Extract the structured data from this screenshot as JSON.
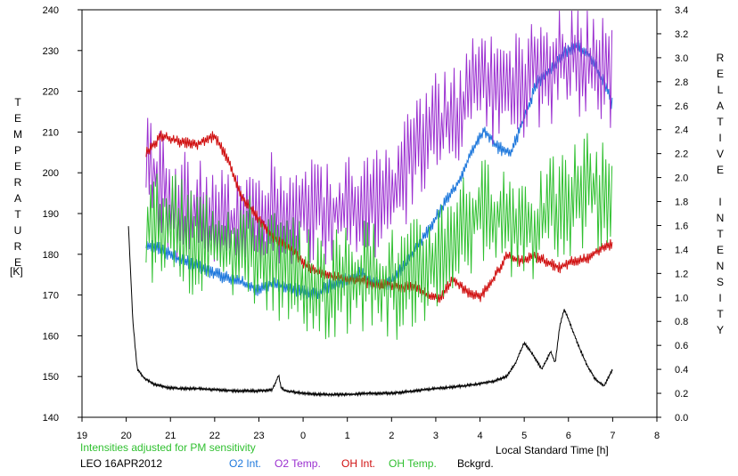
{
  "chart_data": {
    "type": "line",
    "left_axis": {
      "label": "TEMPERATURE",
      "unit": "[K]",
      "range": [
        140,
        240
      ],
      "ticks": [
        140,
        150,
        160,
        170,
        180,
        190,
        200,
        210,
        220,
        230,
        240
      ]
    },
    "right_axis": {
      "label": "RELATIVE INTENSITY",
      "range": [
        0.0,
        3.4
      ],
      "ticks": [
        "0.0",
        "0.2",
        "0.4",
        "0.6",
        "0.8",
        "1.0",
        "1.2",
        "1.4",
        "1.6",
        "1.8",
        "2.0",
        "2.2",
        "2.4",
        "2.6",
        "2.8",
        "3.0",
        "3.2",
        "3.4"
      ]
    },
    "x_axis": {
      "label": "Local Standard Time [h]",
      "range": [
        19,
        32
      ],
      "ticks": [
        "19",
        "20",
        "21",
        "22",
        "23",
        "0",
        "1",
        "2",
        "3",
        "4",
        "5",
        "6",
        "7",
        "8"
      ]
    },
    "note": "Intensities adjusted for PM sensitivity",
    "station": "LEO 16APR2012",
    "series": [
      {
        "name": "O2 Int.",
        "color": "#1e78dc",
        "axis": "right",
        "x": [
          20.45,
          20.8,
          21.2,
          21.6,
          22.0,
          22.4,
          22.8,
          23.0,
          23.3,
          23.6,
          24.0,
          24.3,
          24.6,
          25.0,
          25.3,
          25.6,
          25.9,
          26.2,
          26.5,
          26.9,
          27.2,
          27.5,
          27.8,
          28.1,
          28.4,
          28.7,
          29.0,
          29.3,
          29.6,
          29.9,
          30.2,
          30.5,
          30.8,
          31.0
        ],
        "y": [
          1.45,
          1.4,
          1.32,
          1.26,
          1.2,
          1.15,
          1.1,
          1.05,
          1.12,
          1.08,
          1.05,
          1.03,
          1.1,
          1.15,
          1.2,
          1.12,
          1.1,
          1.22,
          1.38,
          1.6,
          1.78,
          1.95,
          2.2,
          2.4,
          2.25,
          2.2,
          2.5,
          2.8,
          2.9,
          3.05,
          3.1,
          3.0,
          2.8,
          2.6
        ]
      },
      {
        "name": "O2 Temp.",
        "color": "#9b30d0",
        "axis": "left",
        "x": [
          20.45,
          20.8,
          21.2,
          21.6,
          22.0,
          22.4,
          22.8,
          23.0,
          23.3,
          23.6,
          24.0,
          24.3,
          24.6,
          25.0,
          25.3,
          25.6,
          25.9,
          26.2,
          26.5,
          26.9,
          27.2,
          27.5,
          27.8,
          28.1,
          28.4,
          28.7,
          29.0,
          29.3,
          29.6,
          29.9,
          30.2,
          30.5,
          30.8,
          31.0
        ],
        "y": [
          205,
          196,
          192,
          190,
          188,
          188,
          190,
          188,
          193,
          190,
          190,
          192,
          190,
          192,
          192,
          193,
          193,
          198,
          205,
          210,
          212,
          215,
          220,
          222,
          218,
          220,
          222,
          225,
          225,
          227,
          228,
          226,
          225,
          225
        ]
      },
      {
        "name": "OH Int.",
        "color": "#d01010",
        "axis": "right",
        "x": [
          20.45,
          20.8,
          21.2,
          21.6,
          22.0,
          22.3,
          22.6,
          22.9,
          23.2,
          23.5,
          23.8,
          24.0,
          24.3,
          24.6,
          25.0,
          25.3,
          25.6,
          25.9,
          26.2,
          26.5,
          26.8,
          27.1,
          27.4,
          27.7,
          28.0,
          28.3,
          28.6,
          28.9,
          29.2,
          29.5,
          29.8,
          30.1,
          30.4,
          30.7,
          31.0
        ],
        "y": [
          2.2,
          2.35,
          2.3,
          2.28,
          2.35,
          2.15,
          1.85,
          1.7,
          1.55,
          1.45,
          1.38,
          1.28,
          1.22,
          1.18,
          1.15,
          1.15,
          1.1,
          1.12,
          1.08,
          1.1,
          1.02,
          1.0,
          1.15,
          1.05,
          1.0,
          1.15,
          1.35,
          1.3,
          1.35,
          1.3,
          1.25,
          1.3,
          1.32,
          1.4,
          1.45
        ]
      },
      {
        "name": "OH Temp.",
        "color": "#30c030",
        "axis": "left",
        "x": [
          20.45,
          20.8,
          21.2,
          21.6,
          22.0,
          22.4,
          22.8,
          23.0,
          23.3,
          23.6,
          24.0,
          24.3,
          24.6,
          25.0,
          25.3,
          25.6,
          25.9,
          26.2,
          26.5,
          26.9,
          27.2,
          27.5,
          27.8,
          28.1,
          28.4,
          28.7,
          29.0,
          29.3,
          29.6,
          29.9,
          30.2,
          30.5,
          30.8,
          31.0
        ],
        "y": [
          185,
          188,
          185,
          183,
          183,
          182,
          181,
          180,
          178,
          176,
          174,
          172,
          171,
          174,
          174,
          175,
          173,
          173,
          175,
          178,
          182,
          187,
          188,
          190,
          190,
          188,
          188,
          186,
          190,
          192,
          195,
          196,
          194,
          192
        ]
      },
      {
        "name": "Bckgrd.",
        "color": "#000000",
        "axis": "right",
        "x": [
          20.05,
          20.15,
          20.25,
          20.4,
          20.6,
          20.9,
          21.2,
          21.6,
          22.0,
          22.5,
          23.0,
          23.3,
          23.45,
          23.5,
          23.6,
          24.0,
          24.5,
          25.0,
          25.5,
          26.0,
          26.5,
          27.0,
          27.3,
          27.6,
          28.0,
          28.3,
          28.6,
          28.8,
          29.0,
          29.2,
          29.4,
          29.6,
          29.7,
          29.8,
          29.9,
          30.0,
          30.2,
          30.4,
          30.6,
          30.8,
          31.0
        ],
        "y": [
          1.6,
          0.8,
          0.4,
          0.33,
          0.28,
          0.25,
          0.24,
          0.24,
          0.23,
          0.22,
          0.22,
          0.23,
          0.35,
          0.25,
          0.22,
          0.2,
          0.19,
          0.19,
          0.2,
          0.2,
          0.22,
          0.24,
          0.25,
          0.26,
          0.28,
          0.3,
          0.34,
          0.45,
          0.62,
          0.52,
          0.4,
          0.55,
          0.45,
          0.75,
          0.9,
          0.82,
          0.62,
          0.45,
          0.32,
          0.26,
          0.4
        ]
      }
    ]
  }
}
